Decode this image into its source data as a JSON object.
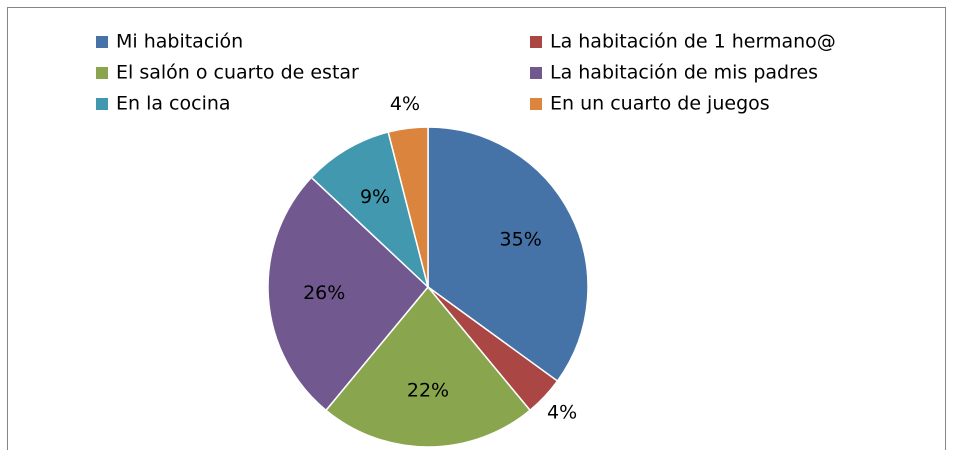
{
  "chart_data": {
    "type": "pie",
    "categories": [
      "Mi habitación",
      "La habitación de 1 hermano@",
      "El salón o cuarto de estar",
      "La habitación de mis padres",
      "En la cocina",
      "En un cuarto de juegos"
    ],
    "values": [
      35,
      4,
      22,
      26,
      9,
      4
    ],
    "value_labels": [
      "35%",
      "4%",
      "22%",
      "26%",
      "9%",
      "4%"
    ],
    "colors": [
      "#4572a7",
      "#aa4643",
      "#89a54e",
      "#71588f",
      "#4198af",
      "#db843d"
    ],
    "legend": "top"
  }
}
